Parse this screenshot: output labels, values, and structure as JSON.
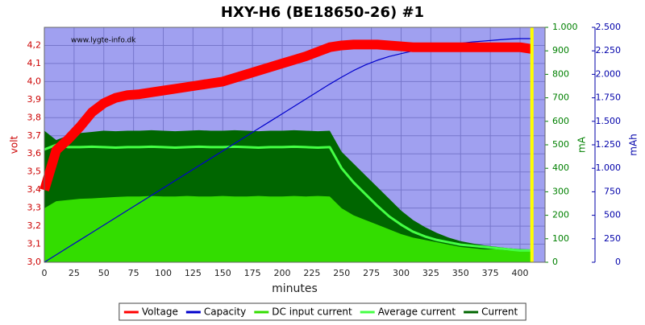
{
  "chart_data": {
    "type": "line",
    "title": "HXY-H6 (BE18650-26) #1",
    "annotation": "www.lygte-info.dk",
    "xlabel": "minutes",
    "ylabel": "volt",
    "y2label": "mA",
    "y3label": "mAh",
    "background": "#a0a0f0",
    "grid": true,
    "x": [
      0,
      10,
      20,
      30,
      40,
      50,
      60,
      70,
      80,
      90,
      100,
      110,
      120,
      130,
      140,
      150,
      160,
      170,
      180,
      190,
      200,
      210,
      220,
      230,
      240,
      250,
      260,
      270,
      280,
      290,
      300,
      310,
      320,
      330,
      340,
      350,
      360,
      370,
      380,
      390,
      400,
      410
    ],
    "xlim": [
      0,
      421
    ],
    "xticks": [
      0,
      25,
      50,
      75,
      100,
      125,
      150,
      175,
      200,
      225,
      250,
      275,
      300,
      325,
      350,
      375,
      400
    ],
    "ylim": [
      3.0,
      4.3
    ],
    "yticks": [
      {
        "value": 3.0,
        "label": "3,0"
      },
      {
        "value": 3.1,
        "label": "3,1"
      },
      {
        "value": 3.2,
        "label": "3,2"
      },
      {
        "value": 3.3,
        "label": "3,3"
      },
      {
        "value": 3.4,
        "label": "3,4"
      },
      {
        "value": 3.5,
        "label": "3,5"
      },
      {
        "value": 3.6,
        "label": "3,6"
      },
      {
        "value": 3.7,
        "label": "3,7"
      },
      {
        "value": 3.8,
        "label": "3,8"
      },
      {
        "value": 3.9,
        "label": "3,9"
      },
      {
        "value": 4.0,
        "label": "4,0"
      },
      {
        "value": 4.1,
        "label": "4,1"
      },
      {
        "value": 4.2,
        "label": "4,2"
      }
    ],
    "y2lim": [
      0,
      1000
    ],
    "y2ticks": [
      0,
      100,
      200,
      300,
      400,
      500,
      600,
      700,
      800,
      900,
      {
        "value": 1000,
        "label": "1.000"
      }
    ],
    "y3lim": [
      0,
      2500
    ],
    "y3ticks": [
      0,
      250,
      500,
      750,
      {
        "value": 1000,
        "label": "1.000"
      },
      {
        "value": 1250,
        "label": "1.250"
      },
      {
        "value": 1500,
        "label": "1.500"
      },
      {
        "value": 1750,
        "label": "1.750"
      },
      {
        "value": 2000,
        "label": "2.000"
      },
      {
        "value": 2250,
        "label": "2.250"
      },
      {
        "value": 2500,
        "label": "2.500"
      }
    ],
    "series": [
      {
        "name": "Voltage",
        "color": "#ff0000",
        "axis": "y",
        "style": "thick",
        "values": [
          3.4,
          3.62,
          3.68,
          3.75,
          3.83,
          3.88,
          3.91,
          3.925,
          3.93,
          3.94,
          3.95,
          3.96,
          3.97,
          3.98,
          3.99,
          4.0,
          4.02,
          4.04,
          4.06,
          4.08,
          4.1,
          4.12,
          4.14,
          4.165,
          4.19,
          4.2,
          4.205,
          4.205,
          4.205,
          4.2,
          4.195,
          4.19,
          4.19,
          4.19,
          4.19,
          4.19,
          4.19,
          4.19,
          4.19,
          4.19,
          4.19,
          4.18
        ]
      },
      {
        "name": "Capacity",
        "color": "#0000cc",
        "axis": "y3",
        "style": "line",
        "values": [
          0,
          79,
          158,
          237,
          316,
          395,
          474,
          553,
          632,
          711,
          790,
          869,
          948,
          1027,
          1106,
          1185,
          1264,
          1343,
          1422,
          1501,
          1580,
          1659,
          1738,
          1817,
          1896,
          1970,
          2040,
          2100,
          2150,
          2190,
          2220,
          2250,
          2270,
          2290,
          2310,
          2330,
          2345,
          2355,
          2365,
          2375,
          2380,
          2380
        ]
      },
      {
        "name": "DC input current",
        "color": "#33dd00",
        "axis": "y2",
        "style": "area",
        "values": [
          230,
          260,
          265,
          270,
          272,
          275,
          278,
          280,
          280,
          282,
          280,
          280,
          282,
          280,
          280,
          282,
          280,
          280,
          282,
          280,
          280,
          282,
          280,
          282,
          280,
          230,
          200,
          180,
          160,
          140,
          120,
          105,
          95,
          85,
          75,
          65,
          60,
          55,
          55,
          50,
          50,
          45
        ]
      },
      {
        "name": "Average current",
        "color": "#44ff44",
        "axis": "y2",
        "style": "line",
        "values": [
          480,
          500,
          490,
          490,
          492,
          490,
          488,
          490,
          490,
          492,
          490,
          488,
          490,
          492,
          490,
          490,
          492,
          490,
          488,
          490,
          490,
          492,
          490,
          488,
          490,
          400,
          340,
          290,
          240,
          195,
          160,
          130,
          110,
          95,
          85,
          75,
          70,
          65,
          60,
          55,
          50,
          50
        ]
      },
      {
        "name": "Current",
        "color": "#006600",
        "axis": "y2",
        "style": "area",
        "values": [
          560,
          520,
          540,
          550,
          555,
          560,
          558,
          560,
          560,
          562,
          560,
          558,
          560,
          562,
          560,
          560,
          562,
          560,
          558,
          560,
          560,
          562,
          560,
          558,
          560,
          470,
          420,
          370,
          320,
          270,
          220,
          180,
          150,
          125,
          105,
          90,
          80,
          72,
          66,
          60,
          56,
          55
        ]
      }
    ]
  }
}
